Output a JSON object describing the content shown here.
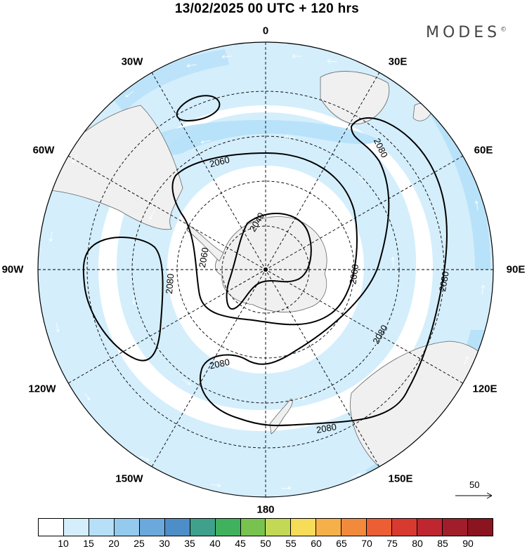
{
  "title": "13/02/2025  00 UTC  + 120 hrs",
  "brand": "MODES",
  "brand_mark": "©",
  "longitude_labels": {
    "n0": "0",
    "e30": "30E",
    "e60": "60E",
    "e90": "90E",
    "e120": "120E",
    "e150": "150E",
    "s180": "180",
    "w150": "150W",
    "w120": "120W",
    "w90": "90W",
    "w60": "60W",
    "w30": "30W"
  },
  "contour_labels": {
    "c2040": "2040",
    "c2060a": "2060",
    "c2060b": "2060",
    "c2060c": "2060",
    "c2080a": "2080",
    "c2080b": "2080",
    "c2080c": "2080",
    "c2080d": "2080",
    "c2080e": "2080",
    "c2080f": "2080"
  },
  "reference_vector": "50",
  "colorbar": {
    "ticks": [
      "10",
      "15",
      "20",
      "25",
      "30",
      "35",
      "40",
      "45",
      "50",
      "55",
      "60",
      "65",
      "70",
      "75",
      "80",
      "85",
      "90"
    ],
    "colors": [
      "#ffffff",
      "#d4eefc",
      "#b5e0f8",
      "#93caee",
      "#6ba8dc",
      "#4d8ec8",
      "#3fa08c",
      "#40b15c",
      "#78c350",
      "#c3d855",
      "#f7dc5a",
      "#f6b04a",
      "#f28a3c",
      "#ec5e33",
      "#d93a30",
      "#bf2630",
      "#a21d2a",
      "#8a1420"
    ]
  },
  "colors": {
    "wind_light": "#d4eefc",
    "wind_mid": "#b5e0f8",
    "land": "#f0f0f0",
    "contour": "#000000"
  }
}
